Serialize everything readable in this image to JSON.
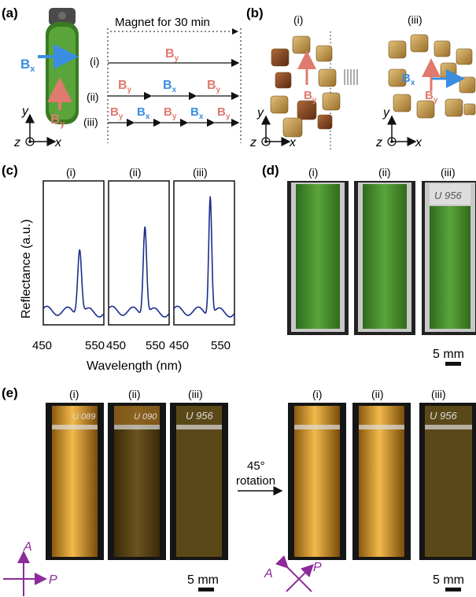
{
  "panels": {
    "a": "(a)",
    "b": "(b)",
    "c": "(c)",
    "d": "(d)",
    "e": "(e)"
  },
  "roman": {
    "i": "(i)",
    "ii": "(ii)",
    "iii": "(iii)"
  },
  "a": {
    "magnet_label": "Magnet for 30 min",
    "By": "B",
    "By_sub": "y",
    "Bx": "B",
    "Bx_sub": "x",
    "axis_y": "y",
    "axis_z": "z",
    "axis_x": "x",
    "sequences": {
      "i": [
        "By"
      ],
      "ii": [
        "By",
        "Bx",
        "By"
      ],
      "iii": [
        "By",
        "Bx",
        "By",
        "Bx",
        "By"
      ]
    }
  },
  "b": {
    "axis_y": "y",
    "axis_z": "z",
    "axis_x": "x"
  },
  "c": {
    "ylabel": "Reflectance (a.u.)",
    "xlabel": "Wavelength (nm)",
    "ticks": [
      "450",
      "550",
      "450",
      "550",
      "450",
      "550"
    ]
  },
  "d": {
    "scale": "5 mm"
  },
  "e": {
    "rotation_1": "45°",
    "rotation_2": "rotation",
    "scale_left": "5 mm",
    "scale_right": "5 mm",
    "A": "A",
    "P": "P",
    "cuvette_labels": [
      "U 089",
      "U 090",
      "U 956",
      "U 956"
    ]
  },
  "colors": {
    "By": "#e07a6e",
    "Bx": "#3b8de0",
    "curve": "#1c2d8c",
    "green": "#4f9a2e",
    "yellow": "#d9a23a",
    "purple": "#8e2a9a"
  },
  "chart_data": {
    "type": "line",
    "xlabel": "Wavelength (nm)",
    "ylabel": "Reflectance (a.u.)",
    "xlim": [
      420,
      620
    ],
    "series": [
      {
        "name": "(i)",
        "peak_x": 540,
        "peak_y": 0.46,
        "width": 9
      },
      {
        "name": "(ii)",
        "peak_x": 540,
        "peak_y": 0.62,
        "width": 8
      },
      {
        "name": "(iii)",
        "peak_x": 540,
        "peak_y": 0.83,
        "width": 7
      }
    ]
  }
}
